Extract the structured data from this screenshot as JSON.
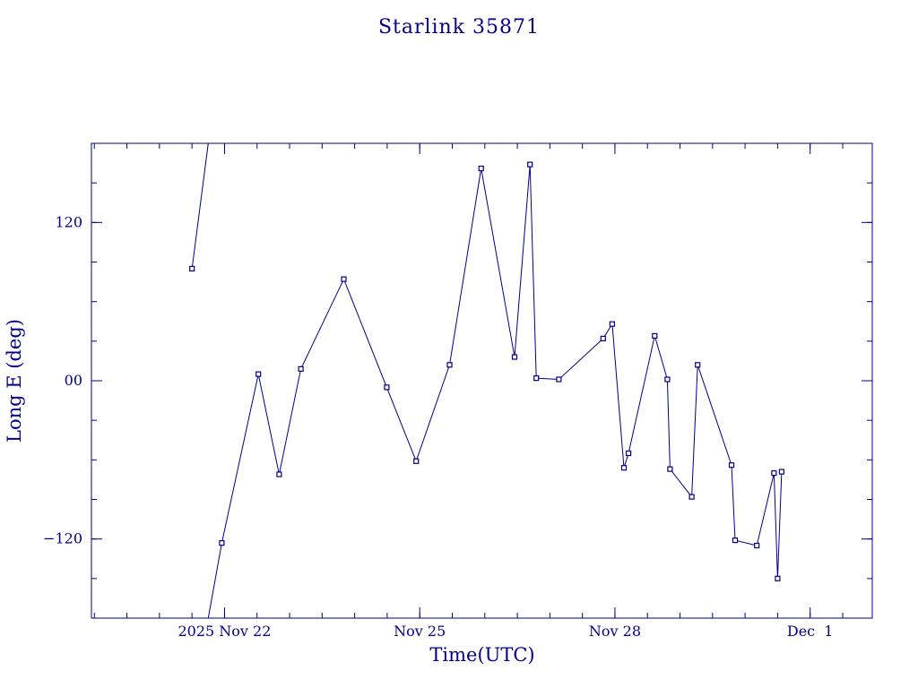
{
  "chart_data": {
    "type": "line",
    "title": "Starlink 35871",
    "xlabel": "Time(UTC)",
    "ylabel": "Long E (deg)",
    "xlim": [
      "2025-11-19T22:55",
      "2025-12-01T22:55"
    ],
    "ylim": [
      -180,
      180
    ],
    "x_major_ticks": [
      {
        "t": "2025-11-22T00:00",
        "label": "2025 Nov 22"
      },
      {
        "t": "2025-11-25T00:00",
        "label": "Nov 25"
      },
      {
        "t": "2025-11-28T00:00",
        "label": "Nov 28"
      },
      {
        "t": "2025-12-01T00:00",
        "label": "Dec  1"
      }
    ],
    "x_minor_step_hours": 12,
    "y_major_ticks": [
      {
        "v": 120,
        "label": "120"
      },
      {
        "v": 0,
        "label": "00"
      },
      {
        "v": -120,
        "label": "−120"
      }
    ],
    "y_minor_step": 30,
    "grid": false,
    "series": [
      {
        "points": [
          {
            "t": "2025-11-21T12:00",
            "y": 85
          },
          {
            "t": "2025-11-21T18:00",
            "y": 182
          },
          {
            "t": "2025-11-21T18:00",
            "y": -182
          },
          {
            "t": "2025-11-21T23:00",
            "y": -123
          },
          {
            "t": "2025-11-22T12:30",
            "y": 5
          },
          {
            "t": "2025-11-22T20:10",
            "y": -71
          },
          {
            "t": "2025-11-23T04:10",
            "y": 9
          },
          {
            "t": "2025-11-23T20:00",
            "y": 77
          },
          {
            "t": "2025-11-24T11:50",
            "y": -5
          },
          {
            "t": "2025-11-24T22:40",
            "y": -61
          },
          {
            "t": "2025-11-25T11:00",
            "y": 12
          },
          {
            "t": "2025-11-25T22:40",
            "y": 161
          },
          {
            "t": "2025-11-26T11:00",
            "y": 18
          },
          {
            "t": "2025-11-26T16:40",
            "y": 164
          },
          {
            "t": "2025-11-26T19:00",
            "y": 2
          },
          {
            "t": "2025-11-27T03:20",
            "y": 1
          },
          {
            "t": "2025-11-27T19:40",
            "y": 32
          },
          {
            "t": "2025-11-27T23:00",
            "y": 43
          },
          {
            "t": "2025-11-28T03:20",
            "y": -66
          },
          {
            "t": "2025-11-28T05:00",
            "y": -55
          },
          {
            "t": "2025-11-28T14:40",
            "y": 34
          },
          {
            "t": "2025-11-28T19:20",
            "y": 1
          },
          {
            "t": "2025-11-28T20:20",
            "y": -67
          },
          {
            "t": "2025-11-29T04:20",
            "y": -88
          },
          {
            "t": "2025-11-29T06:30",
            "y": 12
          },
          {
            "t": "2025-11-29T19:00",
            "y": -64
          },
          {
            "t": "2025-11-29T20:20",
            "y": -121
          },
          {
            "t": "2025-11-30T04:20",
            "y": -125
          },
          {
            "t": "2025-11-30T10:40",
            "y": -70
          },
          {
            "t": "2025-11-30T12:00",
            "y": -150
          },
          {
            "t": "2025-11-30T13:30",
            "y": -69
          }
        ]
      }
    ]
  }
}
